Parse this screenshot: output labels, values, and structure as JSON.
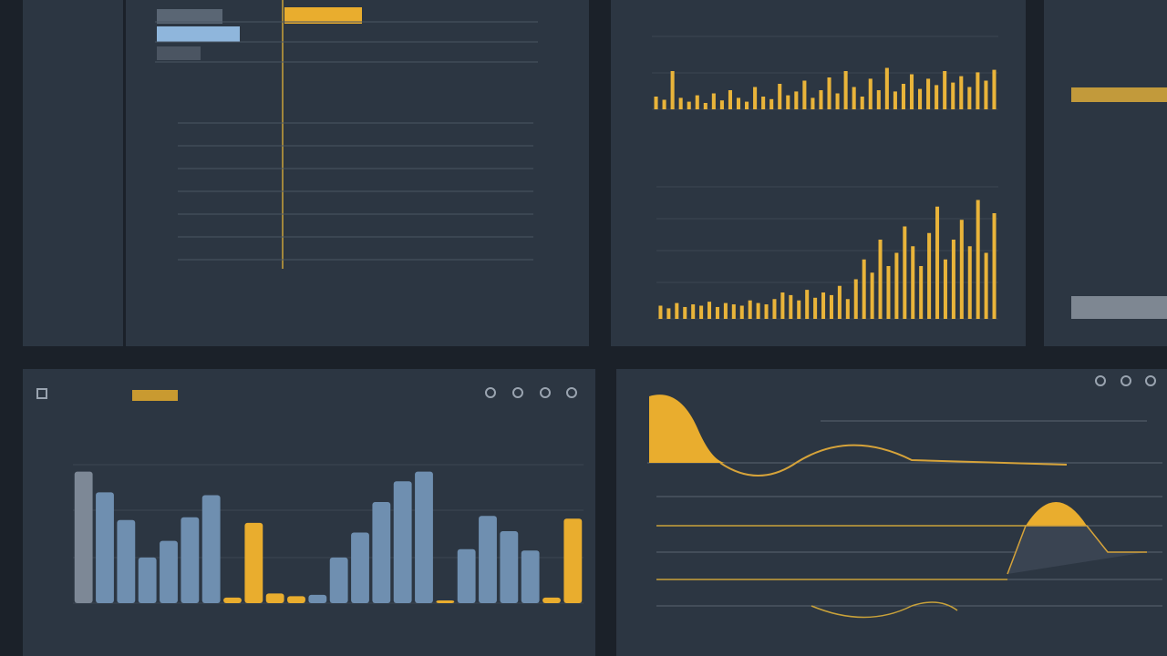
{
  "chart_data": [
    {
      "type": "bar",
      "ylim": [
        0,
        100
      ],
      "values": [
        95,
        80,
        60,
        33,
        45,
        62,
        78,
        4,
        58,
        7,
        5,
        6,
        33,
        51,
        73,
        88,
        95,
        2,
        39,
        63,
        52,
        38,
        4,
        61
      ],
      "colors": [
        "#7d8896",
        "#6f8fb0",
        "#6f8fb0",
        "#6f8fb0",
        "#6f8fb0",
        "#6f8fb0",
        "#6f8fb0",
        "#e9ad2e",
        "#e9ad2e",
        "#e9ad2e",
        "#e9ad2e",
        "#6f8fb0",
        "#6f8fb0",
        "#6f8fb0",
        "#6f8fb0",
        "#6f8fb0",
        "#6f8fb0",
        "#e9ad2e",
        "#6f8fb0",
        "#6f8fb0",
        "#6f8fb0",
        "#6f8fb0",
        "#e9ad2e",
        "#e9ad2e"
      ]
    },
    {
      "type": "bar",
      "ylim": [
        0,
        100
      ],
      "color": "#e9b43a",
      "values": [
        20,
        15,
        60,
        18,
        12,
        22,
        10,
        25,
        14,
        30,
        18,
        12,
        35,
        20,
        16,
        40,
        22,
        28,
        45,
        18,
        30,
        50,
        25,
        60,
        35,
        20,
        48,
        30,
        65,
        28,
        40,
        55,
        32,
        48,
        38,
        60,
        42,
        52,
        35,
        58,
        45,
        62
      ]
    },
    {
      "type": "bar",
      "ylim": [
        0,
        100
      ],
      "color": "#e9b43a",
      "values": [
        10,
        8,
        12,
        9,
        11,
        10,
        13,
        9,
        12,
        11,
        10,
        14,
        12,
        11,
        15,
        20,
        18,
        14,
        22,
        16,
        20,
        18,
        25,
        15,
        30,
        45,
        35,
        60,
        40,
        50,
        70,
        55,
        40,
        65,
        85,
        45,
        60,
        75,
        55,
        90,
        50,
        80
      ]
    }
  ]
}
